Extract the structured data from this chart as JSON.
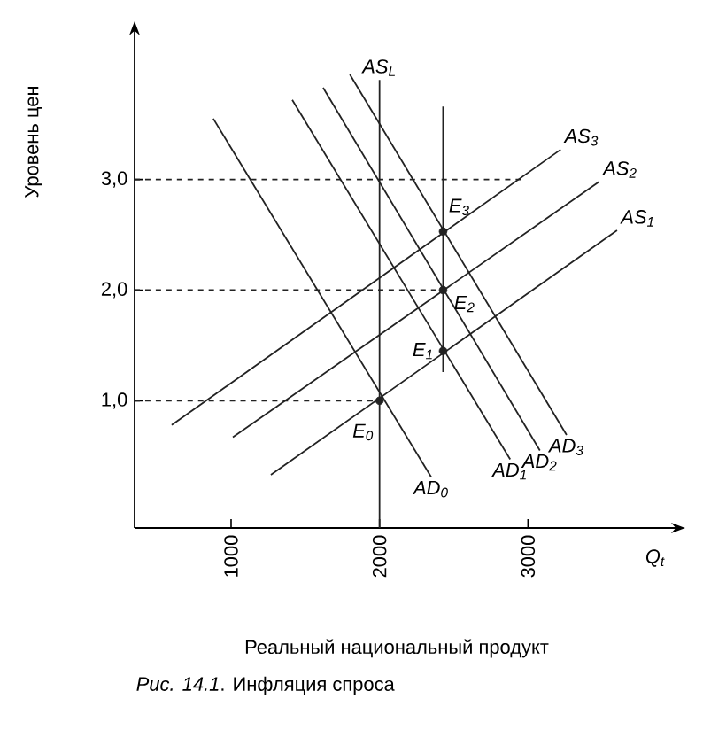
{
  "chart_data": {
    "type": "line",
    "xlabel": "Реальный национальный продукт",
    "ylabel": "Уровень цен",
    "xlim": [
      350,
      4000
    ],
    "ylim": [
      -0.15,
      4.35
    ],
    "xticks": [
      1000,
      2000,
      3000
    ],
    "yticks": [
      {
        "value": 1,
        "label": "1,0"
      },
      {
        "value": 2,
        "label": "2,0"
      },
      {
        "value": 3,
        "label": "3,0"
      }
    ],
    "grid": false,
    "legend": false,
    "series": [
      {
        "name": "AD$_{0}$",
        "color": "#222222",
        "x": [
          880,
          2348
        ],
        "values": [
          3.55,
          0.31
        ]
      },
      {
        "name": "AD$_{1}$",
        "color": "#222222",
        "x": [
          1412,
          2880
        ],
        "values": [
          3.72,
          0.47
        ]
      },
      {
        "name": "AD$_{2}$",
        "color": "#222222",
        "x": [
          1620,
          3080
        ],
        "values": [
          3.83,
          0.55
        ]
      },
      {
        "name": "AD$_{3}$",
        "color": "#222222",
        "x": [
          1800,
          3260
        ],
        "values": [
          3.95,
          0.69
        ]
      },
      {
        "name": "AS$_{L}$",
        "color": "#222222",
        "x": [
          2000,
          2000
        ],
        "values": [
          -0.15,
          3.9
        ]
      },
      {
        "name": "AS$_{1}$",
        "color": "#222222",
        "x": [
          1268,
          3600
        ],
        "values": [
          0.33,
          2.54
        ]
      },
      {
        "name": "AS$_{2}$",
        "color": "#222222",
        "x": [
          1012,
          3480
        ],
        "values": [
          0.67,
          2.98
        ]
      },
      {
        "name": "AS$_{3}$",
        "color": "#222222",
        "x": [
          600,
          3220
        ],
        "values": [
          0.78,
          3.27
        ]
      },
      {
        "color": "#222222",
        "x": [
          2428,
          2428
        ],
        "values": [
          1.26,
          3.66
        ]
      },
      {
        "color": "#222222",
        "line_style": "dashed",
        "x": [
          350,
          2000
        ],
        "values": [
          1,
          1
        ]
      },
      {
        "color": "#222222",
        "line_style": "dashed",
        "x": [
          350,
          2428
        ],
        "values": [
          2,
          2
        ]
      },
      {
        "color": "#222222",
        "line_style": "dashed",
        "x": [
          350,
          2980
        ],
        "values": [
          3,
          3
        ]
      },
      {
        "type": "scatter",
        "marker": "circle",
        "color": "#222222",
        "x": [
          2000,
          2428,
          2428,
          2428
        ],
        "values": [
          1,
          1.45,
          2,
          2.53
        ]
      }
    ],
    "annotations": [
      "E$_{0}$",
      "E$_{1}$",
      "E$_{2}$",
      "E$_{3}$",
      "Q$_{t}$",
      "*Рис. 14.1*. Инфляция спроса"
    ]
  }
}
